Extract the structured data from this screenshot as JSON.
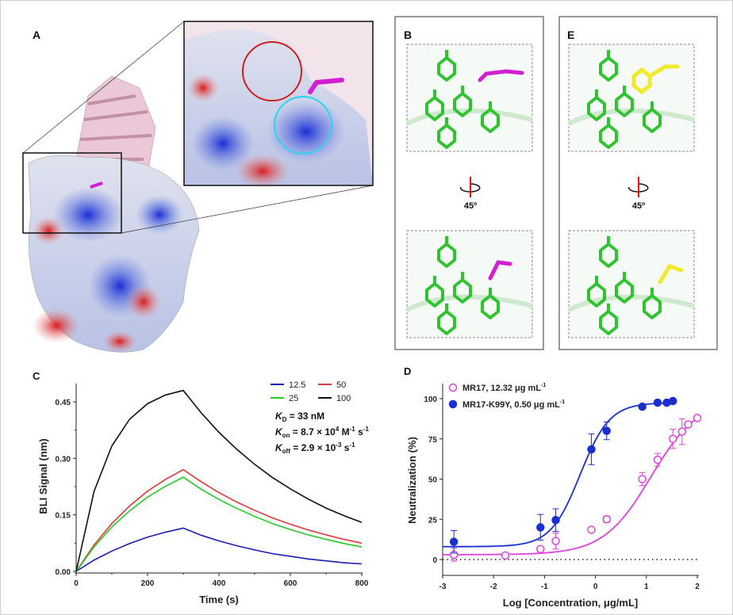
{
  "panels": {
    "a": {
      "label": "A"
    },
    "b": {
      "label": "B",
      "rotation": "45º"
    },
    "e": {
      "label": "E",
      "rotation": "45º"
    },
    "c": {
      "label": "C"
    },
    "d": {
      "label": "D"
    }
  },
  "colors": {
    "positive": "#1f2fd6",
    "negative": "#d62020",
    "ligand_b": "#d21fd2",
    "ligand_e": "#f0ea2c",
    "residues": "#2fc42f",
    "circle_red": "#d21c1c",
    "circle_cyan": "#29d4f0",
    "ribbon": "#e8c3d3"
  },
  "chart_data": [
    {
      "type": "line",
      "panel": "C",
      "xlabel": "Time (s)",
      "ylabel": "BLI Signal (nm)",
      "xlim": [
        0,
        800
      ],
      "ylim": [
        0,
        0.5
      ],
      "xticks": [
        "0",
        "200",
        "400",
        "600",
        "800"
      ],
      "yticks": [
        "0.00",
        "0.15",
        "0.30",
        "0.45"
      ],
      "grid": false,
      "legend_position": "top-right",
      "annotations": [
        {
          "sym": "K",
          "sub": "D",
          "text": " = 33 nM"
        },
        {
          "sym": "K",
          "sub": "on",
          "text": " = 8.7 × 10",
          "sup": "4",
          "text2": " M",
          "sup2": "-1",
          "text3": " s",
          "sup3": "-1"
        },
        {
          "sym": "K",
          "sub": "off",
          "text": " = 2.9 × 10",
          "sup": "-3",
          "text2": " s",
          "sup2": "-1"
        }
      ],
      "x": [
        0,
        50,
        100,
        150,
        200,
        250,
        300,
        350,
        400,
        450,
        500,
        550,
        600,
        650,
        700,
        750,
        800
      ],
      "series": [
        {
          "name": "12.5",
          "color": "#1c1cb4",
          "values": [
            0,
            0.03,
            0.054,
            0.074,
            0.091,
            0.104,
            0.115,
            0.096,
            0.081,
            0.068,
            0.057,
            0.047,
            0.04,
            0.033,
            0.028,
            0.023,
            0.02
          ]
        },
        {
          "name": "50",
          "color": "#e03a3a",
          "values": [
            0,
            0.07,
            0.127,
            0.174,
            0.213,
            0.244,
            0.27,
            0.238,
            0.209,
            0.184,
            0.162,
            0.142,
            0.125,
            0.11,
            0.097,
            0.085,
            0.075
          ]
        },
        {
          "name": "25",
          "color": "#22cc22",
          "values": [
            0,
            0.065,
            0.118,
            0.161,
            0.197,
            0.226,
            0.25,
            0.218,
            0.191,
            0.167,
            0.146,
            0.127,
            0.111,
            0.097,
            0.085,
            0.074,
            0.065
          ]
        },
        {
          "name": "100",
          "color": "#111111",
          "values": [
            0,
            0.212,
            0.333,
            0.404,
            0.445,
            0.468,
            0.48,
            0.421,
            0.369,
            0.324,
            0.284,
            0.249,
            0.219,
            0.192,
            0.168,
            0.148,
            0.13
          ]
        }
      ]
    },
    {
      "type": "scatter",
      "panel": "D",
      "xlabel": "Log [Concentration, μg/mL]",
      "ylabel": "Neutralization (%)",
      "xlim": [
        -3,
        2
      ],
      "ylim": [
        -10,
        110
      ],
      "xticks": [
        "-3",
        "-2",
        "-1",
        "0",
        "1",
        "2"
      ],
      "yticks": [
        "0",
        "25",
        "50",
        "75",
        "100"
      ],
      "grid": false,
      "legend_position": "top-left",
      "baseline_dotted": 0,
      "series": [
        {
          "name": "MR17, 12.32 μg mL",
          "name_sup": "-1",
          "ic50": 12.32,
          "color": "#e040e0",
          "marker": "open-circle",
          "x": [
            -2.78,
            -1.77,
            -1.08,
            -0.78,
            -0.08,
            0.22,
            0.92,
            1.22,
            1.52,
            1.7,
            1.82,
            2.0
          ],
          "y": [
            3,
            2.5,
            6.5,
            11.5,
            18.5,
            25,
            50,
            62,
            75,
            79.5,
            84,
            88
          ],
          "err": [
            4,
            0,
            0,
            5,
            0,
            2,
            4,
            4,
            6,
            8,
            0,
            0
          ]
        },
        {
          "name": "MR17-K99Y, 0.50 μg mL",
          "name_sup": "-1",
          "ic50": 0.5,
          "color": "#1a2fd0",
          "marker": "filled-circle",
          "x": [
            -2.78,
            -1.08,
            -0.78,
            -0.08,
            0.22,
            0.92,
            1.22,
            1.4,
            1.52
          ],
          "y": [
            11,
            20,
            24.5,
            68.5,
            80,
            95,
            97.5,
            97.5,
            98.5
          ],
          "err": [
            7,
            8,
            7,
            9.5,
            5.5,
            0,
            0,
            0,
            0
          ]
        }
      ]
    }
  ]
}
